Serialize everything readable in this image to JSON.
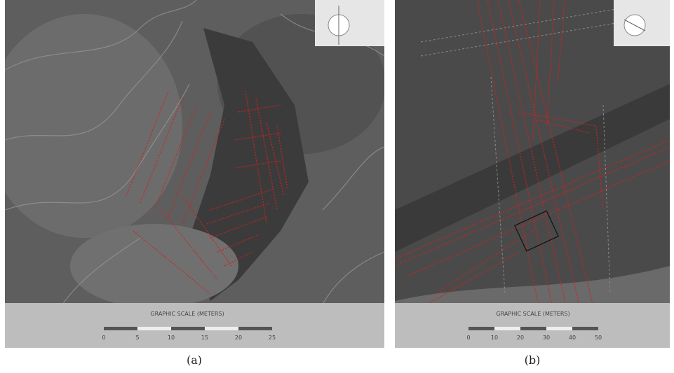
{
  "panels": [
    {
      "caption": "(a)",
      "scale": {
        "title": "GRAPHIC SCALE (METERS)",
        "ticks": [
          "0",
          "5",
          "10",
          "15",
          "20",
          "25"
        ]
      }
    },
    {
      "caption": "(b)",
      "scale": {
        "title": "GRAPHIC SCALE (METERS)",
        "ticks": [
          "0",
          "10",
          "20",
          "30",
          "40",
          "50"
        ]
      }
    }
  ]
}
